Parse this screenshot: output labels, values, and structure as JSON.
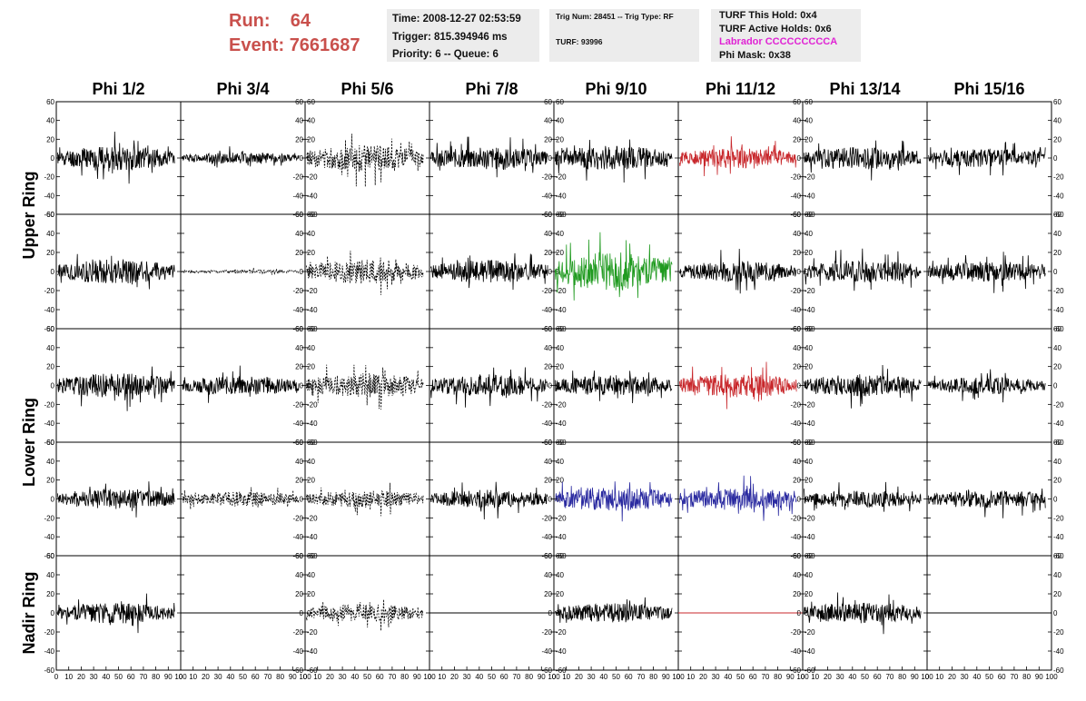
{
  "header": {
    "run_label": "Run:",
    "run_value": "64",
    "event_label": "Event:",
    "event_value": "7661687"
  },
  "info": {
    "time": "Time: 2008-12-27 02:53:59",
    "trigger": "Trigger: 815.394946 ms",
    "priority": "Priority: 6 -- Queue: 6",
    "trig_num": "Trig Num: 28451 -- Trig Type: RF",
    "turf": "TURF: 93996",
    "turf_this_hold": "TURF This Hold: 0x4",
    "turf_active_holds": "TURF Active Holds: 0x6",
    "labrador": "Labrador CCCCCCCCCA",
    "phi_mask": "Phi Mask: 0x38"
  },
  "colors": {
    "header_red": "#c9504c",
    "labrador_magenta": "#e023d4",
    "trace_black": "#000000",
    "trace_red": "#c8272b",
    "trace_green": "#1f9a1f",
    "trace_blue": "#2a2aa0",
    "box_grey": "#ececec"
  },
  "chart_data": {
    "type": "line",
    "columns": [
      "Phi 1/2",
      "Phi 3/4",
      "Phi 5/6",
      "Phi 7/8",
      "Phi 9/10",
      "Phi 11/12",
      "Phi 13/14",
      "Phi 15/16"
    ],
    "rows": [
      "Upper Ring",
      "Lower Ring",
      "Nadir Ring"
    ],
    "xlim": [
      0,
      100
    ],
    "ylim": [
      -60,
      60
    ],
    "y_ticks": [
      -60,
      -40,
      -20,
      0,
      20,
      40,
      60
    ],
    "x_ticks": [
      0,
      10,
      20,
      30,
      40,
      50,
      60,
      70,
      80,
      90,
      100
    ],
    "panels": [
      {
        "r": 0,
        "c": 0,
        "style": "solid",
        "color": "black",
        "amp": 13,
        "seed": 11
      },
      {
        "r": 0,
        "c": 1,
        "style": "solid",
        "color": "black",
        "amp": 6,
        "seed": 12
      },
      {
        "r": 0,
        "c": 2,
        "style": "dashed",
        "color": "black",
        "amp": 14,
        "seed": 13
      },
      {
        "r": 0,
        "c": 3,
        "style": "solid",
        "color": "black",
        "amp": 12,
        "seed": 14
      },
      {
        "r": 0,
        "c": 4,
        "style": "solid",
        "color": "black",
        "amp": 13,
        "seed": 15
      },
      {
        "r": 0,
        "c": 5,
        "style": "solid",
        "color": "red",
        "amp": 11,
        "seed": 16
      },
      {
        "r": 0,
        "c": 6,
        "style": "solid",
        "color": "black",
        "amp": 12,
        "seed": 17
      },
      {
        "r": 0,
        "c": 7,
        "style": "solid",
        "color": "black",
        "amp": 10,
        "seed": 18
      },
      {
        "r": 1,
        "c": 0,
        "style": "solid",
        "color": "black",
        "amp": 13,
        "seed": 21
      },
      {
        "r": 1,
        "c": 1,
        "style": "dashed",
        "color": "black",
        "amp": 2,
        "seed": 22
      },
      {
        "r": 1,
        "c": 2,
        "style": "dashed",
        "color": "black",
        "amp": 13,
        "seed": 23
      },
      {
        "r": 1,
        "c": 3,
        "style": "solid",
        "color": "black",
        "amp": 12,
        "seed": 24
      },
      {
        "r": 1,
        "c": 4,
        "style": "solid",
        "color": "green",
        "amp": 20,
        "seed": 25
      },
      {
        "r": 1,
        "c": 5,
        "style": "solid",
        "color": "black",
        "amp": 11,
        "seed": 26
      },
      {
        "r": 1,
        "c": 6,
        "style": "solid",
        "color": "black",
        "amp": 12,
        "seed": 27
      },
      {
        "r": 1,
        "c": 7,
        "style": "solid",
        "color": "black",
        "amp": 11,
        "seed": 28
      },
      {
        "r": 2,
        "c": 0,
        "style": "solid",
        "color": "black",
        "amp": 13,
        "seed": 31
      },
      {
        "r": 2,
        "c": 1,
        "style": "solid",
        "color": "black",
        "amp": 10,
        "seed": 32
      },
      {
        "r": 2,
        "c": 2,
        "style": "dashed",
        "color": "black",
        "amp": 13,
        "seed": 33
      },
      {
        "r": 2,
        "c": 3,
        "style": "solid",
        "color": "black",
        "amp": 12,
        "seed": 34
      },
      {
        "r": 2,
        "c": 4,
        "style": "solid",
        "color": "black",
        "amp": 11,
        "seed": 35
      },
      {
        "r": 2,
        "c": 5,
        "style": "solid",
        "color": "red",
        "amp": 13,
        "seed": 36
      },
      {
        "r": 2,
        "c": 6,
        "style": "solid",
        "color": "black",
        "amp": 12,
        "seed": 37
      },
      {
        "r": 2,
        "c": 7,
        "style": "solid",
        "color": "black",
        "amp": 9,
        "seed": 38
      },
      {
        "r": 3,
        "c": 0,
        "style": "solid",
        "color": "black",
        "amp": 11,
        "seed": 41
      },
      {
        "r": 3,
        "c": 1,
        "style": "dashed",
        "color": "black",
        "amp": 8,
        "seed": 42
      },
      {
        "r": 3,
        "c": 2,
        "style": "dashed",
        "color": "black",
        "amp": 9,
        "seed": 43
      },
      {
        "r": 3,
        "c": 3,
        "style": "solid",
        "color": "black",
        "amp": 10,
        "seed": 44
      },
      {
        "r": 3,
        "c": 4,
        "style": "solid",
        "color": "blue",
        "amp": 13,
        "seed": 45
      },
      {
        "r": 3,
        "c": 5,
        "style": "solid",
        "color": "blue",
        "amp": 12,
        "seed": 46
      },
      {
        "r": 3,
        "c": 6,
        "style": "solid",
        "color": "black",
        "amp": 9,
        "seed": 47
      },
      {
        "r": 3,
        "c": 7,
        "style": "solid",
        "color": "black",
        "amp": 10,
        "seed": 48
      },
      {
        "r": 4,
        "c": 0,
        "style": "solid",
        "color": "black",
        "amp": 11,
        "seed": 51
      },
      {
        "r": 4,
        "c": 1,
        "style": "flat",
        "color": "black",
        "amp": 0,
        "seed": 52
      },
      {
        "r": 4,
        "c": 2,
        "style": "dashed",
        "color": "black",
        "amp": 9,
        "seed": 53
      },
      {
        "r": 4,
        "c": 3,
        "style": "flat",
        "color": "black",
        "amp": 0,
        "seed": 54
      },
      {
        "r": 4,
        "c": 4,
        "style": "solid",
        "color": "black",
        "amp": 10,
        "seed": 55
      },
      {
        "r": 4,
        "c": 5,
        "style": "flat",
        "color": "red",
        "amp": 0,
        "seed": 56
      },
      {
        "r": 4,
        "c": 6,
        "style": "solid",
        "color": "black",
        "amp": 11,
        "seed": 57
      },
      {
        "r": 4,
        "c": 7,
        "style": "flat",
        "color": "black",
        "amp": 0,
        "seed": 58
      }
    ]
  }
}
